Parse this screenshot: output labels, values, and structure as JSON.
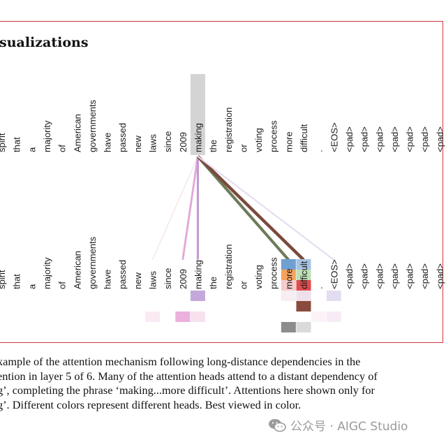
{
  "figure": {
    "heading": "sualizations",
    "top_tokens": [
      "spirit",
      "that",
      "a",
      "majority",
      "of",
      "American",
      "governments",
      "have",
      "passed",
      "new",
      "laws",
      "since",
      "2009",
      "making",
      "the",
      "registration",
      "or",
      "voting",
      "process",
      "more",
      "difficult",
      ".",
      "<EOS>",
      "<pad>",
      "<pad>",
      "<pad>",
      "<pad>",
      "<pad>",
      "<pad>",
      "<pad>"
    ],
    "bottom_tokens": [
      "spirit",
      "that",
      "a",
      "majority",
      "of",
      "American",
      "governments",
      "have",
      "passed",
      "new",
      "laws",
      "since",
      "2009",
      "making",
      "the",
      "registration",
      "or",
      "voting",
      "process",
      "more",
      "difficult",
      ".",
      "<EOS>",
      "<pad>",
      "<pad>",
      "<pad>",
      "<pad>",
      "<pad>",
      "<pad>",
      "<pad>"
    ],
    "highlight_index": 13,
    "attention_links": [
      {
        "target": 10,
        "color": "#f6e6f0",
        "weight": 0.15
      },
      {
        "target": 12,
        "color": "#e3a9d6",
        "weight": 0.55
      },
      {
        "target": 13,
        "color": "#c39ad4",
        "weight": 0.6
      },
      {
        "target": 19,
        "color": "#6d7b5a",
        "weight": 0.9
      },
      {
        "target": 20,
        "color": "#7a4a3c",
        "weight": 1.0
      },
      {
        "target": 22,
        "color": "#e6def0",
        "weight": 0.35
      }
    ],
    "head_cells": [
      {
        "token": 19,
        "row": 0,
        "color": "#6fa0d2"
      },
      {
        "token": 20,
        "row": 0,
        "color": "#a7c3e3"
      },
      {
        "token": 19,
        "row": 1,
        "color": "#f5a35c"
      },
      {
        "token": 20,
        "row": 1,
        "color": "#bfe0b6"
      },
      {
        "token": 19,
        "row": 2,
        "color": "#f6cccc"
      },
      {
        "token": 20,
        "row": 2,
        "color": "#df4c4c"
      },
      {
        "token": 13,
        "row": 3,
        "color": "#c4a8db"
      },
      {
        "token": 19,
        "row": 3,
        "color": "#f6eef2"
      },
      {
        "token": 20,
        "row": 3,
        "color": "#efe1ec"
      },
      {
        "token": 22,
        "row": 3,
        "color": "#e4ddf1"
      },
      {
        "token": 20,
        "row": 4,
        "color": "#8b4a3e"
      },
      {
        "token": 10,
        "row": 5,
        "color": "#fbeaf3"
      },
      {
        "token": 12,
        "row": 5,
        "color": "#ebb1dd"
      },
      {
        "token": 13,
        "row": 5,
        "color": "#f7e1ef"
      },
      {
        "token": 21,
        "row": 5,
        "color": "#fbf3f7"
      },
      {
        "token": 22,
        "row": 5,
        "color": "#f7ecf5"
      },
      {
        "token": 19,
        "row": 6,
        "color": "#8c8c8c"
      },
      {
        "token": 20,
        "row": 6,
        "color": "#dadada"
      }
    ],
    "frame_color": "#d0343f"
  },
  "caption": {
    "lines": [
      "xample of the attention mechanism following long-distance dependencies in the",
      "ention in layer 5 of 6. Many of the attention heads attend to a distant dependency of",
      "g’, completing the phrase ‘making...more difficult’. Attentions here shown only for",
      "g’. Different colors represent different heads. Best viewed in color."
    ]
  },
  "watermark": {
    "text": "公众号 · AIGC Studio",
    "icon": "wechat-icon"
  }
}
